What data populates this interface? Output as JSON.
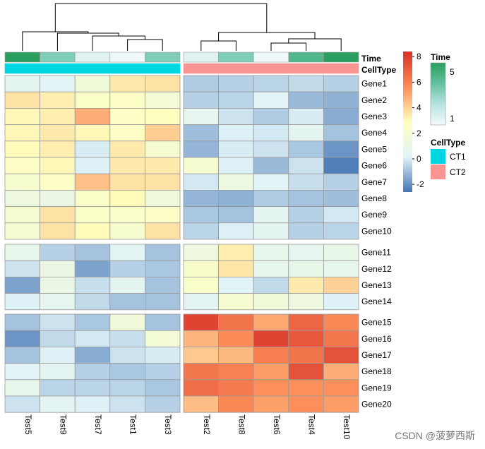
{
  "chart_data": {
    "type": "heatmap",
    "columns_left": [
      "Test5",
      "Test9",
      "Test7",
      "Test1",
      "Test3"
    ],
    "columns_right": [
      "Test2",
      "Test8",
      "Test6",
      "Test4",
      "Test10"
    ],
    "row_groups": [
      [
        "Gene1",
        "Gene2",
        "Gene3",
        "Gene4",
        "Gene5",
        "Gene6",
        "Gene7",
        "Gene8",
        "Gene9",
        "Gene10"
      ],
      [
        "Gene11",
        "Gene12",
        "Gene13",
        "Gene14"
      ],
      [
        "Gene15",
        "Gene16",
        "Gene17",
        "Gene18",
        "Gene19",
        "Gene20"
      ]
    ],
    "values": [
      [
        0.5,
        0.3,
        1.7,
        3.4,
        3.6,
        -0.7,
        -0.6,
        -0.5,
        -0.4,
        -0.6
      ],
      [
        3.6,
        3.3,
        2.5,
        2.6,
        1.8,
        -0.6,
        -0.5,
        0.2,
        -1.1,
        -1.3
      ],
      [
        3.1,
        3.3,
        4.9,
        2.6,
        2.9,
        0.7,
        -0.2,
        -0.7,
        0.0,
        -1.4
      ],
      [
        3.1,
        3.4,
        3.1,
        2.6,
        4.1,
        -1.0,
        0.1,
        -0.1,
        0.5,
        -0.9
      ],
      [
        3.0,
        3.3,
        0.0,
        3.4,
        2.1,
        -1.2,
        0.0,
        -0.2,
        -0.8,
        -1.9
      ],
      [
        2.6,
        3.1,
        0.1,
        3.4,
        3.4,
        2.1,
        0.1,
        -1.1,
        -0.2,
        -2.4
      ],
      [
        2.2,
        2.6,
        4.4,
        3.6,
        3.6,
        -0.1,
        1.3,
        0.3,
        -0.3,
        -0.6
      ],
      [
        1.4,
        1.1,
        2.5,
        3.0,
        1.5,
        -1.2,
        -1.3,
        -0.7,
        -0.9,
        -1.0
      ],
      [
        2.1,
        3.6,
        2.5,
        2.4,
        2.6,
        -0.8,
        -0.9,
        0.5,
        -0.6,
        -0.1
      ],
      [
        2.1,
        3.6,
        3.0,
        2.2,
        3.6,
        -0.5,
        0.1,
        0.5,
        -0.6,
        -0.5
      ],
      [
        0.8,
        -0.6,
        -0.9,
        0.4,
        -0.9,
        1.4,
        3.3,
        0.8,
        0.7,
        0.9
      ],
      [
        -0.2,
        1.1,
        -1.6,
        -0.6,
        -0.8,
        2.3,
        3.5,
        0.8,
        0.9,
        0.8
      ],
      [
        -1.6,
        1.0,
        -0.3,
        0.5,
        -0.9,
        2.4,
        0.2,
        -0.4,
        3.4,
        4.0
      ],
      [
        0.1,
        0.7,
        -0.4,
        -0.9,
        -0.9,
        0.4,
        2.1,
        1.7,
        1.4,
        0.1
      ],
      [
        -0.9,
        -0.2,
        -0.8,
        1.6,
        -0.9,
        7.8,
        6.4,
        5.0,
        6.8,
        5.8
      ],
      [
        -1.9,
        -0.4,
        -0.1,
        -0.3,
        1.8,
        4.7,
        5.7,
        7.8,
        7.2,
        6.3
      ],
      [
        -0.9,
        0.1,
        -1.4,
        -0.2,
        0.0,
        4.2,
        4.6,
        6.1,
        6.4,
        7.4
      ],
      [
        0.2,
        0.4,
        -0.6,
        -0.8,
        -0.6,
        6.3,
        6.0,
        5.3,
        7.4,
        4.9
      ],
      [
        0.8,
        -0.5,
        -0.5,
        -0.5,
        -0.8,
        6.6,
        6.2,
        5.6,
        5.6,
        5.6
      ],
      [
        -0.2,
        0.4,
        0.1,
        -0.2,
        -0.6,
        4.5,
        5.8,
        5.2,
        5.6,
        5.3
      ]
    ],
    "time_annotation": [
      5,
      3.2,
      1.4,
      1.1,
      3.2,
      1.4,
      3.2,
      1.1,
      4.1,
      5
    ],
    "celltype_annotation": [
      "CT1",
      "CT1",
      "CT1",
      "CT1",
      "CT1",
      "CT2",
      "CT2",
      "CT2",
      "CT2",
      "CT2"
    ],
    "annotation_labels": {
      "time": "Time",
      "celltype": "CellType"
    },
    "color_scale": {
      "ticks": [
        8,
        6,
        4,
        2,
        0,
        -2
      ],
      "range": [
        -2.6,
        8.4
      ],
      "stops": [
        {
          "v": -2.6,
          "c": "#4575b4"
        },
        {
          "v": 0.15,
          "c": "#e0f3f8"
        },
        {
          "v": 2.9,
          "c": "#ffffbf"
        },
        {
          "v": 5.65,
          "c": "#fc8d59"
        },
        {
          "v": 8.4,
          "c": "#d73027"
        }
      ]
    },
    "legend": {
      "time": {
        "title": "Time",
        "min_label": "1",
        "max_label": "5",
        "colors": [
          "#f2fafa",
          "#b7e3e0",
          "#63c1a1",
          "#2a9f5e"
        ]
      },
      "celltype": {
        "title": "CellType",
        "entries": [
          {
            "label": "CT1",
            "color": "#00d7e0"
          },
          {
            "label": "CT2",
            "color": "#f69591"
          }
        ]
      }
    }
  },
  "watermark": "CSDN @菠萝西斯"
}
